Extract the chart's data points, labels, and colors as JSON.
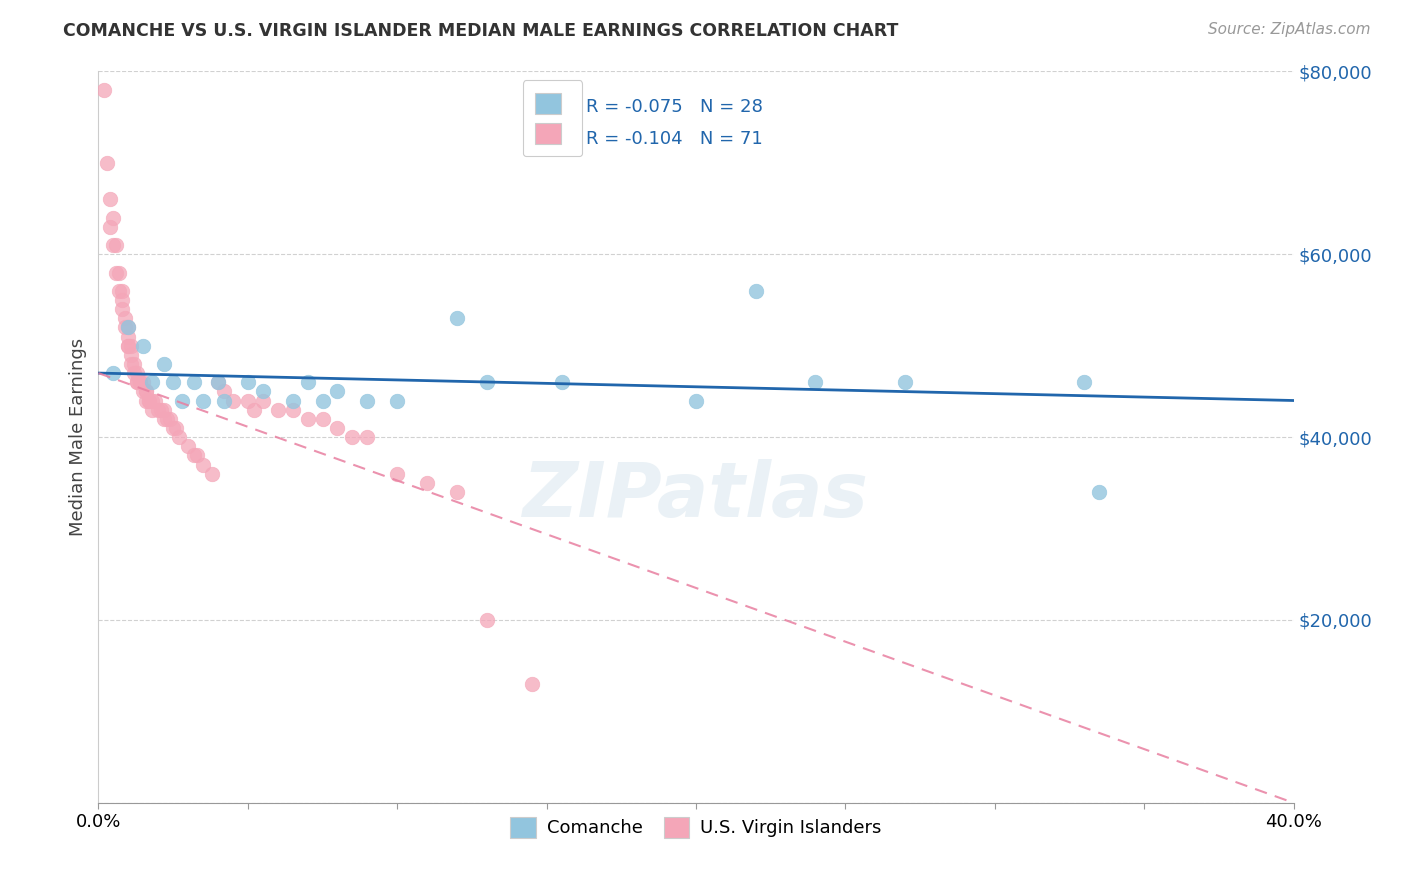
{
  "title": "COMANCHE VS U.S. VIRGIN ISLANDER MEDIAN MALE EARNINGS CORRELATION CHART",
  "source": "Source: ZipAtlas.com",
  "xlabel_comanche": "Comanche",
  "xlabel_vi": "U.S. Virgin Islanders",
  "ylabel": "Median Male Earnings",
  "xlim": [
    0.0,
    0.4
  ],
  "ylim": [
    0,
    80000
  ],
  "yticks": [
    0,
    20000,
    40000,
    60000,
    80000
  ],
  "ytick_labels": [
    "",
    "$20,000",
    "$40,000",
    "$60,000",
    "$80,000"
  ],
  "xticks": [
    0.0,
    0.05,
    0.1,
    0.15,
    0.2,
    0.25,
    0.3,
    0.35,
    0.4
  ],
  "legend_r1": "-0.075",
  "legend_n1": "28",
  "legend_r2": "-0.104",
  "legend_n2": "71",
  "blue_color": "#92c5de",
  "pink_color": "#f4a6b8",
  "blue_line_color": "#2166ac",
  "pink_line_color": "#e87fa0",
  "watermark": "ZIPatlas",
  "comanche_x": [
    0.005,
    0.01,
    0.015,
    0.018,
    0.022,
    0.025,
    0.028,
    0.032,
    0.035,
    0.04,
    0.042,
    0.05,
    0.055,
    0.065,
    0.07,
    0.075,
    0.08,
    0.09,
    0.1,
    0.12,
    0.13,
    0.155,
    0.2,
    0.22,
    0.24,
    0.27,
    0.33,
    0.335
  ],
  "comanche_y": [
    47000,
    52000,
    50000,
    46000,
    48000,
    46000,
    44000,
    46000,
    44000,
    46000,
    44000,
    46000,
    45000,
    44000,
    46000,
    44000,
    45000,
    44000,
    44000,
    53000,
    46000,
    46000,
    44000,
    56000,
    46000,
    46000,
    46000,
    34000
  ],
  "vi_x": [
    0.002,
    0.003,
    0.004,
    0.004,
    0.005,
    0.005,
    0.006,
    0.006,
    0.007,
    0.007,
    0.008,
    0.008,
    0.008,
    0.009,
    0.009,
    0.01,
    0.01,
    0.01,
    0.01,
    0.011,
    0.011,
    0.011,
    0.012,
    0.012,
    0.013,
    0.013,
    0.013,
    0.014,
    0.014,
    0.015,
    0.015,
    0.016,
    0.016,
    0.016,
    0.017,
    0.017,
    0.018,
    0.018,
    0.019,
    0.02,
    0.021,
    0.022,
    0.022,
    0.023,
    0.024,
    0.025,
    0.026,
    0.027,
    0.03,
    0.032,
    0.033,
    0.035,
    0.038,
    0.04,
    0.042,
    0.045,
    0.05,
    0.052,
    0.055,
    0.06,
    0.065,
    0.07,
    0.075,
    0.08,
    0.085,
    0.09,
    0.1,
    0.11,
    0.12,
    0.13,
    0.145
  ],
  "vi_y": [
    78000,
    70000,
    66000,
    63000,
    64000,
    61000,
    61000,
    58000,
    58000,
    56000,
    56000,
    55000,
    54000,
    53000,
    52000,
    52000,
    51000,
    50000,
    50000,
    50000,
    49000,
    48000,
    48000,
    47000,
    47000,
    46000,
    46000,
    46000,
    46000,
    46000,
    45000,
    45000,
    45000,
    44000,
    44000,
    44000,
    44000,
    43000,
    44000,
    43000,
    43000,
    43000,
    42000,
    42000,
    42000,
    41000,
    41000,
    40000,
    39000,
    38000,
    38000,
    37000,
    36000,
    46000,
    45000,
    44000,
    44000,
    43000,
    44000,
    43000,
    43000,
    42000,
    42000,
    41000,
    40000,
    40000,
    36000,
    35000,
    34000,
    20000,
    13000
  ],
  "blue_line_x": [
    0.0,
    0.4
  ],
  "blue_line_y": [
    47000,
    44000
  ],
  "pink_line_x": [
    0.0,
    0.4
  ],
  "pink_line_y": [
    47000,
    0
  ]
}
